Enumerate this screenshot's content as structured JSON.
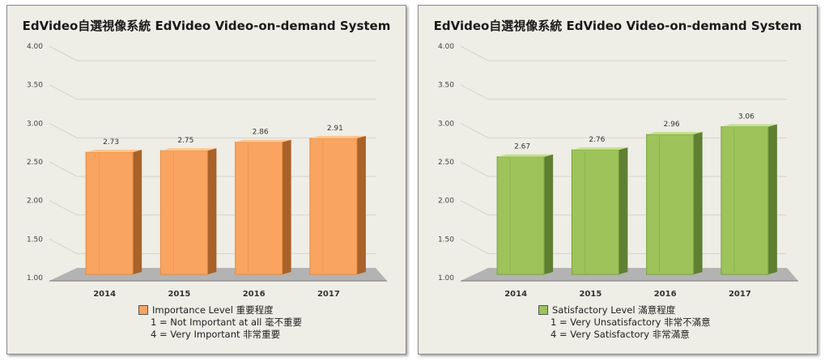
{
  "chart_data": [
    {
      "type": "bar",
      "title": "EdVideo自選視像系統  EdVideo Video-on-demand System",
      "categories": [
        "2014",
        "2015",
        "2016",
        "2017"
      ],
      "series": [
        {
          "name": "Importance Level 重要程度",
          "values": [
            2.73,
            2.75,
            2.86,
            2.91
          ]
        }
      ],
      "value_labels": [
        "2.73",
        "2.75",
        "2.86",
        "2.91"
      ],
      "yticks": [
        "1.00",
        "1.50",
        "2.00",
        "2.50",
        "3.00",
        "3.50",
        "4.00"
      ],
      "ylim": [
        1.0,
        4.0
      ],
      "grid": true,
      "legend_position": "bottom",
      "legend_lines": [
        "1 = Not  Important at all 毫不重要",
        "4 = Very Important 非常重要"
      ],
      "colors": {
        "front": "#f9a460",
        "side": "#a8622a",
        "top": "#ffc58f",
        "edge": "#e88b3c"
      }
    },
    {
      "type": "bar",
      "title": "EdVideo自選視像系統  EdVideo Video-on-demand System",
      "categories": [
        "2014",
        "2015",
        "2016",
        "2017"
      ],
      "series": [
        {
          "name": "Satisfactory Level 滿意程度",
          "values": [
            2.67,
            2.76,
            2.96,
            3.06
          ]
        }
      ],
      "value_labels": [
        "2.67",
        "2.76",
        "2.96",
        "3.06"
      ],
      "yticks": [
        "1.00",
        "1.50",
        "2.00",
        "2.50",
        "3.00",
        "3.50",
        "4.00"
      ],
      "ylim": [
        1.0,
        4.0
      ],
      "grid": true,
      "legend_position": "bottom",
      "legend_lines": [
        "1 = Very Unsatisfactory 非常不滿意",
        "4 = Very Satisfactory 非常滿意"
      ],
      "colors": {
        "front": "#9dc35a",
        "side": "#5f7f33",
        "top": "#c2e08a",
        "edge": "#7aa23c"
      }
    }
  ]
}
